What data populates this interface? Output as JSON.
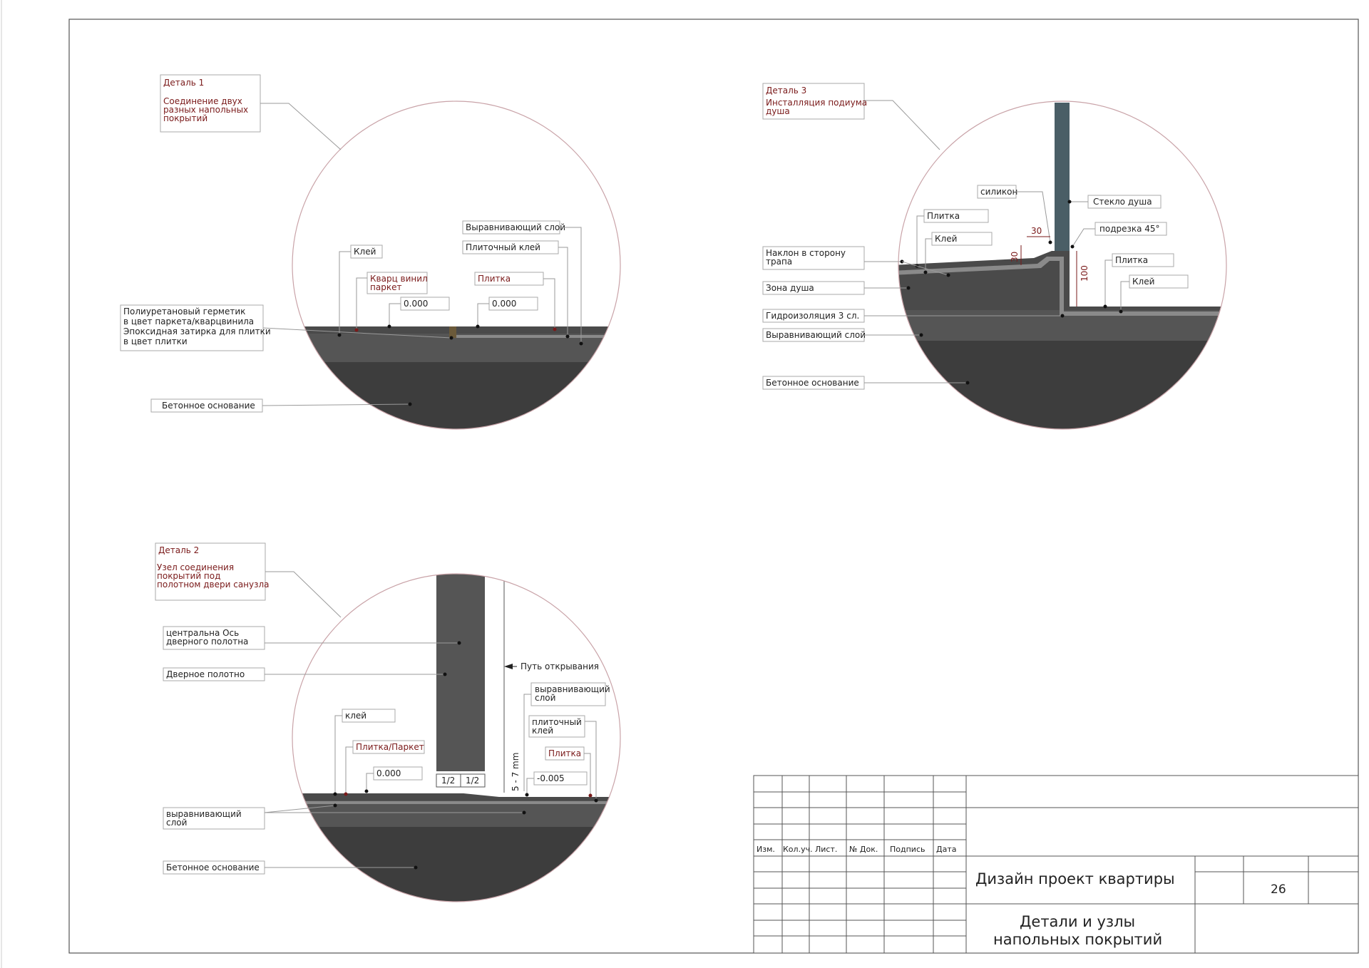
{
  "detail1": {
    "title": "Деталь 1",
    "subtitle_lines": [
      "Соединение двух",
      "разных напольных",
      "покрытий"
    ],
    "labels": {
      "klei": "Клей",
      "kvarc_1": "Кварц винил",
      "kvarc_2": "паркет",
      "elev_left": "0.000",
      "elev_right": "0.000",
      "vyravn": "Выравнивающий слой",
      "plit_klei": "Плиточный клей",
      "plitka": "Плитка",
      "germ_1": "Полиуретановый герметик",
      "germ_2": "в цвет паркета/кварцвинила",
      "germ_3": "Эпоксидная затирка для плитки",
      "germ_4": "в цвет плитки",
      "beton": "Бетонное основание"
    }
  },
  "detail2": {
    "title": "Деталь 2",
    "subtitle_lines": [
      "Узел соединения",
      "покрытий под",
      "полотном двери санузла"
    ],
    "labels": {
      "axis_1": "центральна Ось",
      "axis_2": "дверного полотна",
      "door": "Дверное полотно",
      "path": "Путь открывания",
      "vyravn_r1": "выравнивающий",
      "vyravn_r2": "слой",
      "plit_klei_1": "плиточный",
      "plit_klei_2": "клей",
      "plitka": "Плитка",
      "klei": "клей",
      "plitka_parket": "Плитка/Паркет",
      "elev_left": "0.000",
      "elev_right": "-0.005",
      "half_left": "1/2",
      "half_right": "1/2",
      "gap": "5 - 7 mm",
      "vyravn_l1": "выравнивающий",
      "vyravn_l2": "слой",
      "beton": "Бетонное основание"
    }
  },
  "detail3": {
    "title": "Деталь 3",
    "subtitle_lines": [
      "Инсталляция подиума",
      "душа"
    ],
    "labels": {
      "silikon": "силикон",
      "steklo": "Стекло душа",
      "podrezka": "подрезка 45°",
      "plitka_top": "Плитка",
      "klei_top": "Клей",
      "naklon_1": "Наклон в сторону",
      "naklon_2": "трапа",
      "zona": "Зона душа",
      "gidro": "Гидроизоляция 3 сл.",
      "vyravn": "Выравнивающий слой",
      "beton": "Бетонное основание",
      "plitka_right": "Плитка",
      "klei_right": "Клей",
      "dim_30_h": "30",
      "dim_30_v": "30",
      "dim_100": "100"
    }
  },
  "title_block": {
    "columns": [
      "Изм.",
      "Кол.уч.",
      "Лист.",
      "№ Док.",
      "Подпись",
      "Дата"
    ],
    "project": "Дизайн проект квартиры",
    "sheet": "26",
    "sheet_title_1": "Детали и узлы",
    "sheet_title_2": "напольных покрытий"
  },
  "colors": {
    "concrete": "#3d3d3d",
    "screed": "#545454",
    "glass": "#4a5e66",
    "leader": "#9a9a9a",
    "circle": "#c9a3a8",
    "red_text": "#7a1a1a"
  }
}
